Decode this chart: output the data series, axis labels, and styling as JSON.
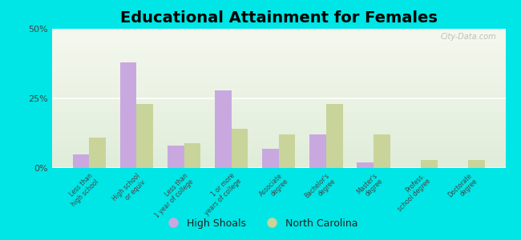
{
  "title": "Educational Attainment for Females",
  "categories": [
    "Less than\nhigh school",
    "High school\nor equiv.",
    "Less than\n1 year of college",
    "1 or more\nyears of college",
    "Associate\ndegree",
    "Bachelor's\ndegree",
    "Master's\ndegree",
    "Profess.\nschool degree",
    "Doctorate\ndegree"
  ],
  "high_shoals": [
    5,
    38,
    8,
    28,
    7,
    12,
    2,
    0,
    0
  ],
  "north_carolina": [
    11,
    23,
    9,
    14,
    12,
    23,
    12,
    3,
    3
  ],
  "color_hs": "#c9a8e0",
  "color_nc": "#c8d49a",
  "background_outer": "#00e5e5",
  "background_inner_top": "#f5f8ee",
  "background_inner_bottom": "#e0edda",
  "ylim": [
    0,
    50
  ],
  "yticks": [
    0,
    25,
    50
  ],
  "ytick_labels": [
    "0%",
    "25%",
    "50%"
  ],
  "bar_width": 0.35,
  "title_fontsize": 14,
  "watermark": "City-Data.com"
}
